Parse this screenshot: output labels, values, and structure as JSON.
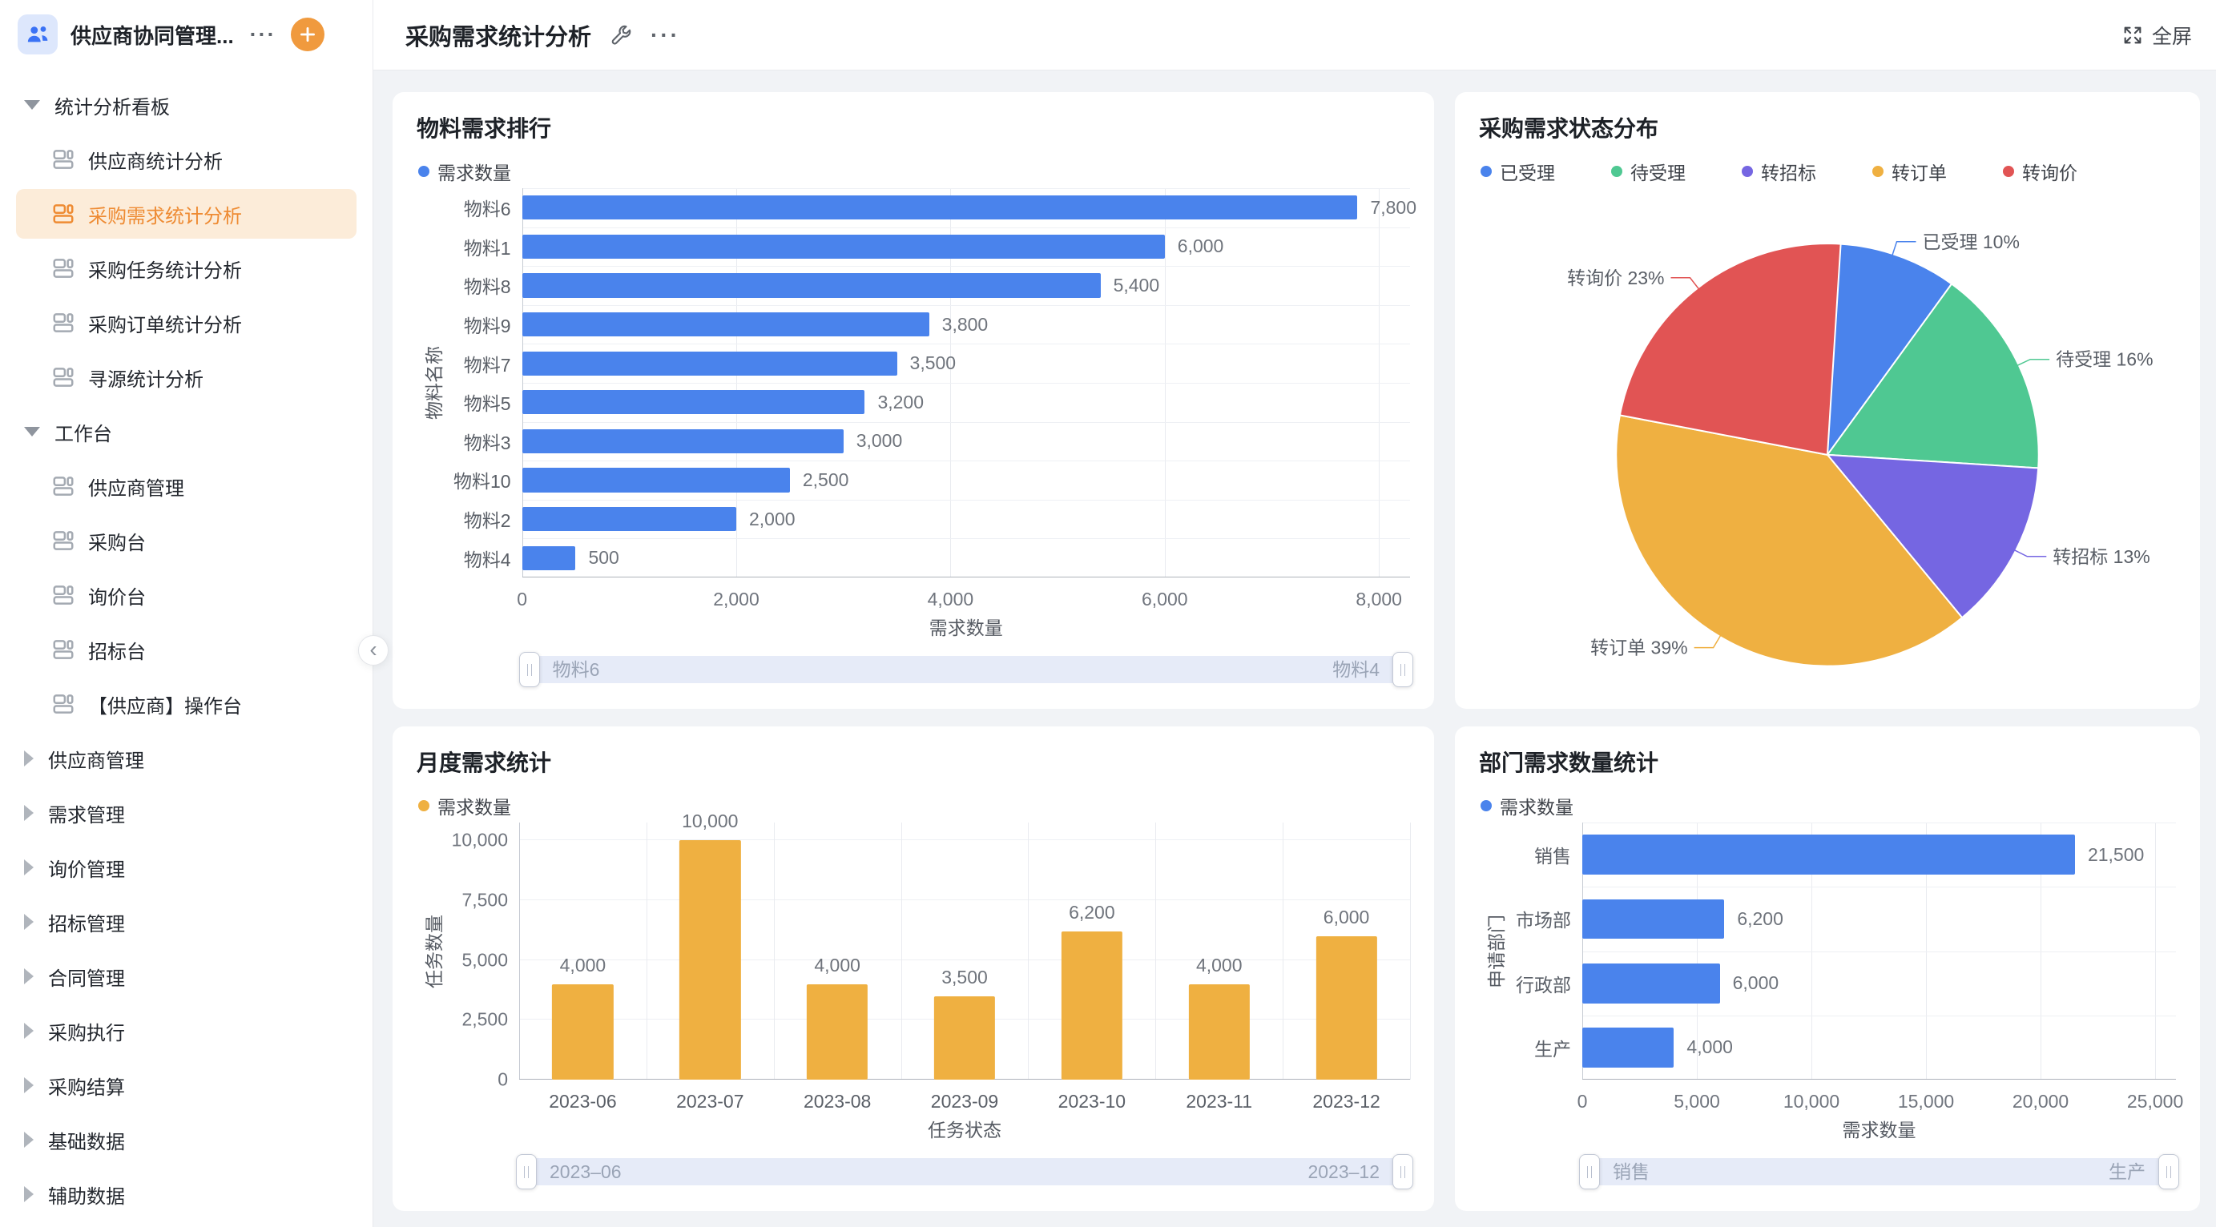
{
  "colors": {
    "accent_orange": "#ee8b33",
    "active_item_bg": "#fcecd9",
    "series_blue": "#4a83ec",
    "series_green": "#4fc892",
    "series_purple": "#7566e2",
    "series_yellow": "#efb041",
    "series_red": "#e15454"
  },
  "sidebar": {
    "workspace_title": "供应商协同管理...",
    "workspace_more": "···",
    "collapse_chevron": "‹",
    "sections": [
      {
        "label": "统计分析看板",
        "state": "expanded",
        "items": [
          {
            "label": "供应商统计分析",
            "active": false
          },
          {
            "label": "采购需求统计分析",
            "active": true
          },
          {
            "label": "采购任务统计分析",
            "active": false
          },
          {
            "label": "采购订单统计分析",
            "active": false
          },
          {
            "label": "寻源统计分析",
            "active": false
          }
        ]
      },
      {
        "label": "工作台",
        "state": "expanded",
        "items": [
          {
            "label": "供应商管理",
            "active": false
          },
          {
            "label": "采购台",
            "active": false
          },
          {
            "label": "询价台",
            "active": false
          },
          {
            "label": "招标台",
            "active": false
          },
          {
            "label": "【供应商】操作台",
            "active": false
          }
        ]
      },
      {
        "label": "供应商管理",
        "state": "collapsed",
        "items": []
      },
      {
        "label": "需求管理",
        "state": "collapsed",
        "items": []
      },
      {
        "label": "询价管理",
        "state": "collapsed",
        "items": []
      },
      {
        "label": "招标管理",
        "state": "collapsed",
        "items": []
      },
      {
        "label": "合同管理",
        "state": "collapsed",
        "items": []
      },
      {
        "label": "采购执行",
        "state": "collapsed",
        "items": []
      },
      {
        "label": "采购结算",
        "state": "collapsed",
        "items": []
      },
      {
        "label": "基础数据",
        "state": "collapsed",
        "items": []
      },
      {
        "label": "辅助数据",
        "state": "collapsed",
        "items": []
      }
    ]
  },
  "header": {
    "title": "采购需求统计分析",
    "more": "···",
    "fullscreen_label": "全屏"
  },
  "chart_data": [
    {
      "type": "bar",
      "orientation": "horizontal",
      "title": "物料需求排行",
      "legend": [
        {
          "name": "需求数量",
          "color": "#4a83ec"
        }
      ],
      "color": "#4a83ec",
      "categories": [
        "物料6",
        "物料1",
        "物料8",
        "物料9",
        "物料7",
        "物料5",
        "物料3",
        "物料10",
        "物料2",
        "物料4"
      ],
      "values": [
        7800,
        6000,
        5400,
        3800,
        3500,
        3200,
        3000,
        2500,
        2000,
        500
      ],
      "xlabel": "需求数量",
      "ylabel": "物料名称",
      "xticks": [
        0,
        2000,
        4000,
        6000,
        8000
      ],
      "xlim": [
        0,
        8000
      ],
      "grid": true,
      "legend_position": "top-left",
      "slider": {
        "start": "物料6",
        "end": "物料4"
      }
    },
    {
      "type": "pie",
      "title": "采购需求状态分布",
      "legend_position": "top",
      "slices": [
        {
          "name": "已受理",
          "pct": 10,
          "color": "#4a83ec"
        },
        {
          "name": "待受理",
          "pct": 16,
          "color": "#4fc892"
        },
        {
          "name": "转招标",
          "pct": 13,
          "color": "#7566e2"
        },
        {
          "name": "转订单",
          "pct": 39,
          "color": "#efb041"
        },
        {
          "name": "转询价",
          "pct": 23,
          "color": "#e15454"
        }
      ],
      "label_format": "{name} {pct}%"
    },
    {
      "type": "bar",
      "orientation": "vertical",
      "title": "月度需求统计",
      "legend": [
        {
          "name": "需求数量",
          "color": "#efb041"
        }
      ],
      "color": "#efb041",
      "categories": [
        "2023-06",
        "2023-07",
        "2023-08",
        "2023-09",
        "2023-10",
        "2023-11",
        "2023-12"
      ],
      "values": [
        4000,
        10000,
        4000,
        3500,
        6200,
        4000,
        6000
      ],
      "xlabel": "任务状态",
      "ylabel": "任务数量",
      "yticks": [
        0,
        2500,
        5000,
        7500,
        10000
      ],
      "ylim": [
        0,
        10000
      ],
      "grid": true,
      "legend_position": "top-left",
      "slider": {
        "start": "2023–06",
        "end": "2023–12"
      }
    },
    {
      "type": "bar",
      "orientation": "horizontal",
      "title": "部门需求数量统计",
      "legend": [
        {
          "name": "需求数量",
          "color": "#4a83ec"
        }
      ],
      "color": "#4a83ec",
      "categories": [
        "销售",
        "市场部",
        "行政部",
        "生产"
      ],
      "values": [
        21500,
        6200,
        6000,
        4000
      ],
      "xlabel": "需求数量",
      "ylabel": "申请部门",
      "xticks": [
        0,
        5000,
        10000,
        15000,
        20000,
        25000
      ],
      "xlim": [
        0,
        25000
      ],
      "grid": true,
      "legend_position": "top-left",
      "slider": {
        "start": "销售",
        "end": "生产"
      }
    }
  ]
}
